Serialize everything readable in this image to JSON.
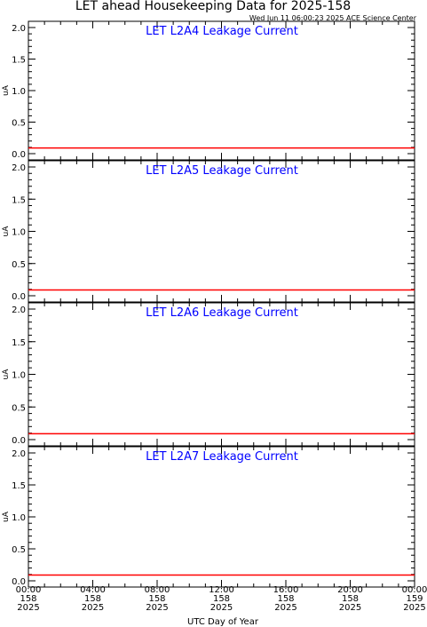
{
  "header": {
    "title": "LET ahead Housekeeping Data for 2025-158",
    "timestamp": "Wed Jun 11 06:00:23 2025 ACE Science Center"
  },
  "xaxis": {
    "label": "UTC Day of Year",
    "ticks": [
      {
        "time": "00:00",
        "doy": "158",
        "year": "2025"
      },
      {
        "time": "04:00",
        "doy": "158",
        "year": "2025"
      },
      {
        "time": "08:00",
        "doy": "158",
        "year": "2025"
      },
      {
        "time": "12:00",
        "doy": "158",
        "year": "2025"
      },
      {
        "time": "16:00",
        "doy": "158",
        "year": "2025"
      },
      {
        "time": "20:00",
        "doy": "158",
        "year": "2025"
      },
      {
        "time": "00:00",
        "doy": "159",
        "year": "2025"
      }
    ]
  },
  "colors": {
    "line": "#ff0000",
    "panel_title": "#0000ff",
    "axes": "#000000"
  },
  "chart_data": [
    {
      "type": "line",
      "title": "LET L2A4 Leakage Current",
      "ylabel": "uA",
      "ylim": [
        0,
        2.0
      ],
      "xlim_hours": [
        0,
        24
      ],
      "yticks": [
        "0.0",
        "0.5",
        "1.0",
        "1.5",
        "2.0"
      ],
      "series": [
        {
          "x": [
            0,
            24
          ],
          "values": [
            0.09,
            0.09
          ]
        }
      ]
    },
    {
      "type": "line",
      "title": "LET L2A5 Leakage Current",
      "ylabel": "uA",
      "ylim": [
        0,
        2.0
      ],
      "xlim_hours": [
        0,
        24
      ],
      "yticks": [
        "0.0",
        "0.5",
        "1.0",
        "1.5",
        "2.0"
      ],
      "series": [
        {
          "x": [
            0,
            24
          ],
          "values": [
            0.09,
            0.09
          ]
        }
      ]
    },
    {
      "type": "line",
      "title": "LET L2A6 Leakage Current",
      "ylabel": "uA",
      "ylim": [
        0,
        2.0
      ],
      "xlim_hours": [
        0,
        24
      ],
      "yticks": [
        "0.0",
        "0.5",
        "1.0",
        "1.5",
        "2.0"
      ],
      "series": [
        {
          "x": [
            0,
            24
          ],
          "values": [
            0.09,
            0.09
          ]
        }
      ]
    },
    {
      "type": "line",
      "title": "LET L2A7 Leakage Current",
      "ylabel": "uA",
      "ylim": [
        0,
        2.0
      ],
      "xlim_hours": [
        0,
        24
      ],
      "yticks": [
        "0.0",
        "0.5",
        "1.0",
        "1.5",
        "2.0"
      ],
      "series": [
        {
          "x": [
            0,
            24
          ],
          "values": [
            0.09,
            0.09
          ]
        }
      ]
    }
  ]
}
